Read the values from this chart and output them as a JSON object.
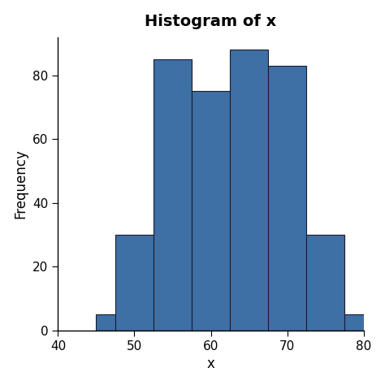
{
  "title": "Histogram of x",
  "xlabel": "x",
  "ylabel": "Frequency",
  "bin_edges": [
    45,
    47.5,
    52.5,
    57.5,
    62.5,
    67.5,
    72.5,
    77.5,
    80
  ],
  "bar_heights": [
    5,
    30,
    85,
    75,
    88,
    83,
    30,
    5
  ],
  "bar_color": "#3e6fa5",
  "bar_edgecolor": "#1a1a2e",
  "xlim": [
    40,
    80
  ],
  "ylim": [
    0,
    92
  ],
  "xticks": [
    40,
    50,
    60,
    70,
    80
  ],
  "yticks": [
    0,
    20,
    40,
    60,
    80
  ],
  "title_fontsize": 14,
  "title_fontweight": "bold",
  "label_fontsize": 12,
  "tick_fontsize": 11,
  "bg_color": "white"
}
